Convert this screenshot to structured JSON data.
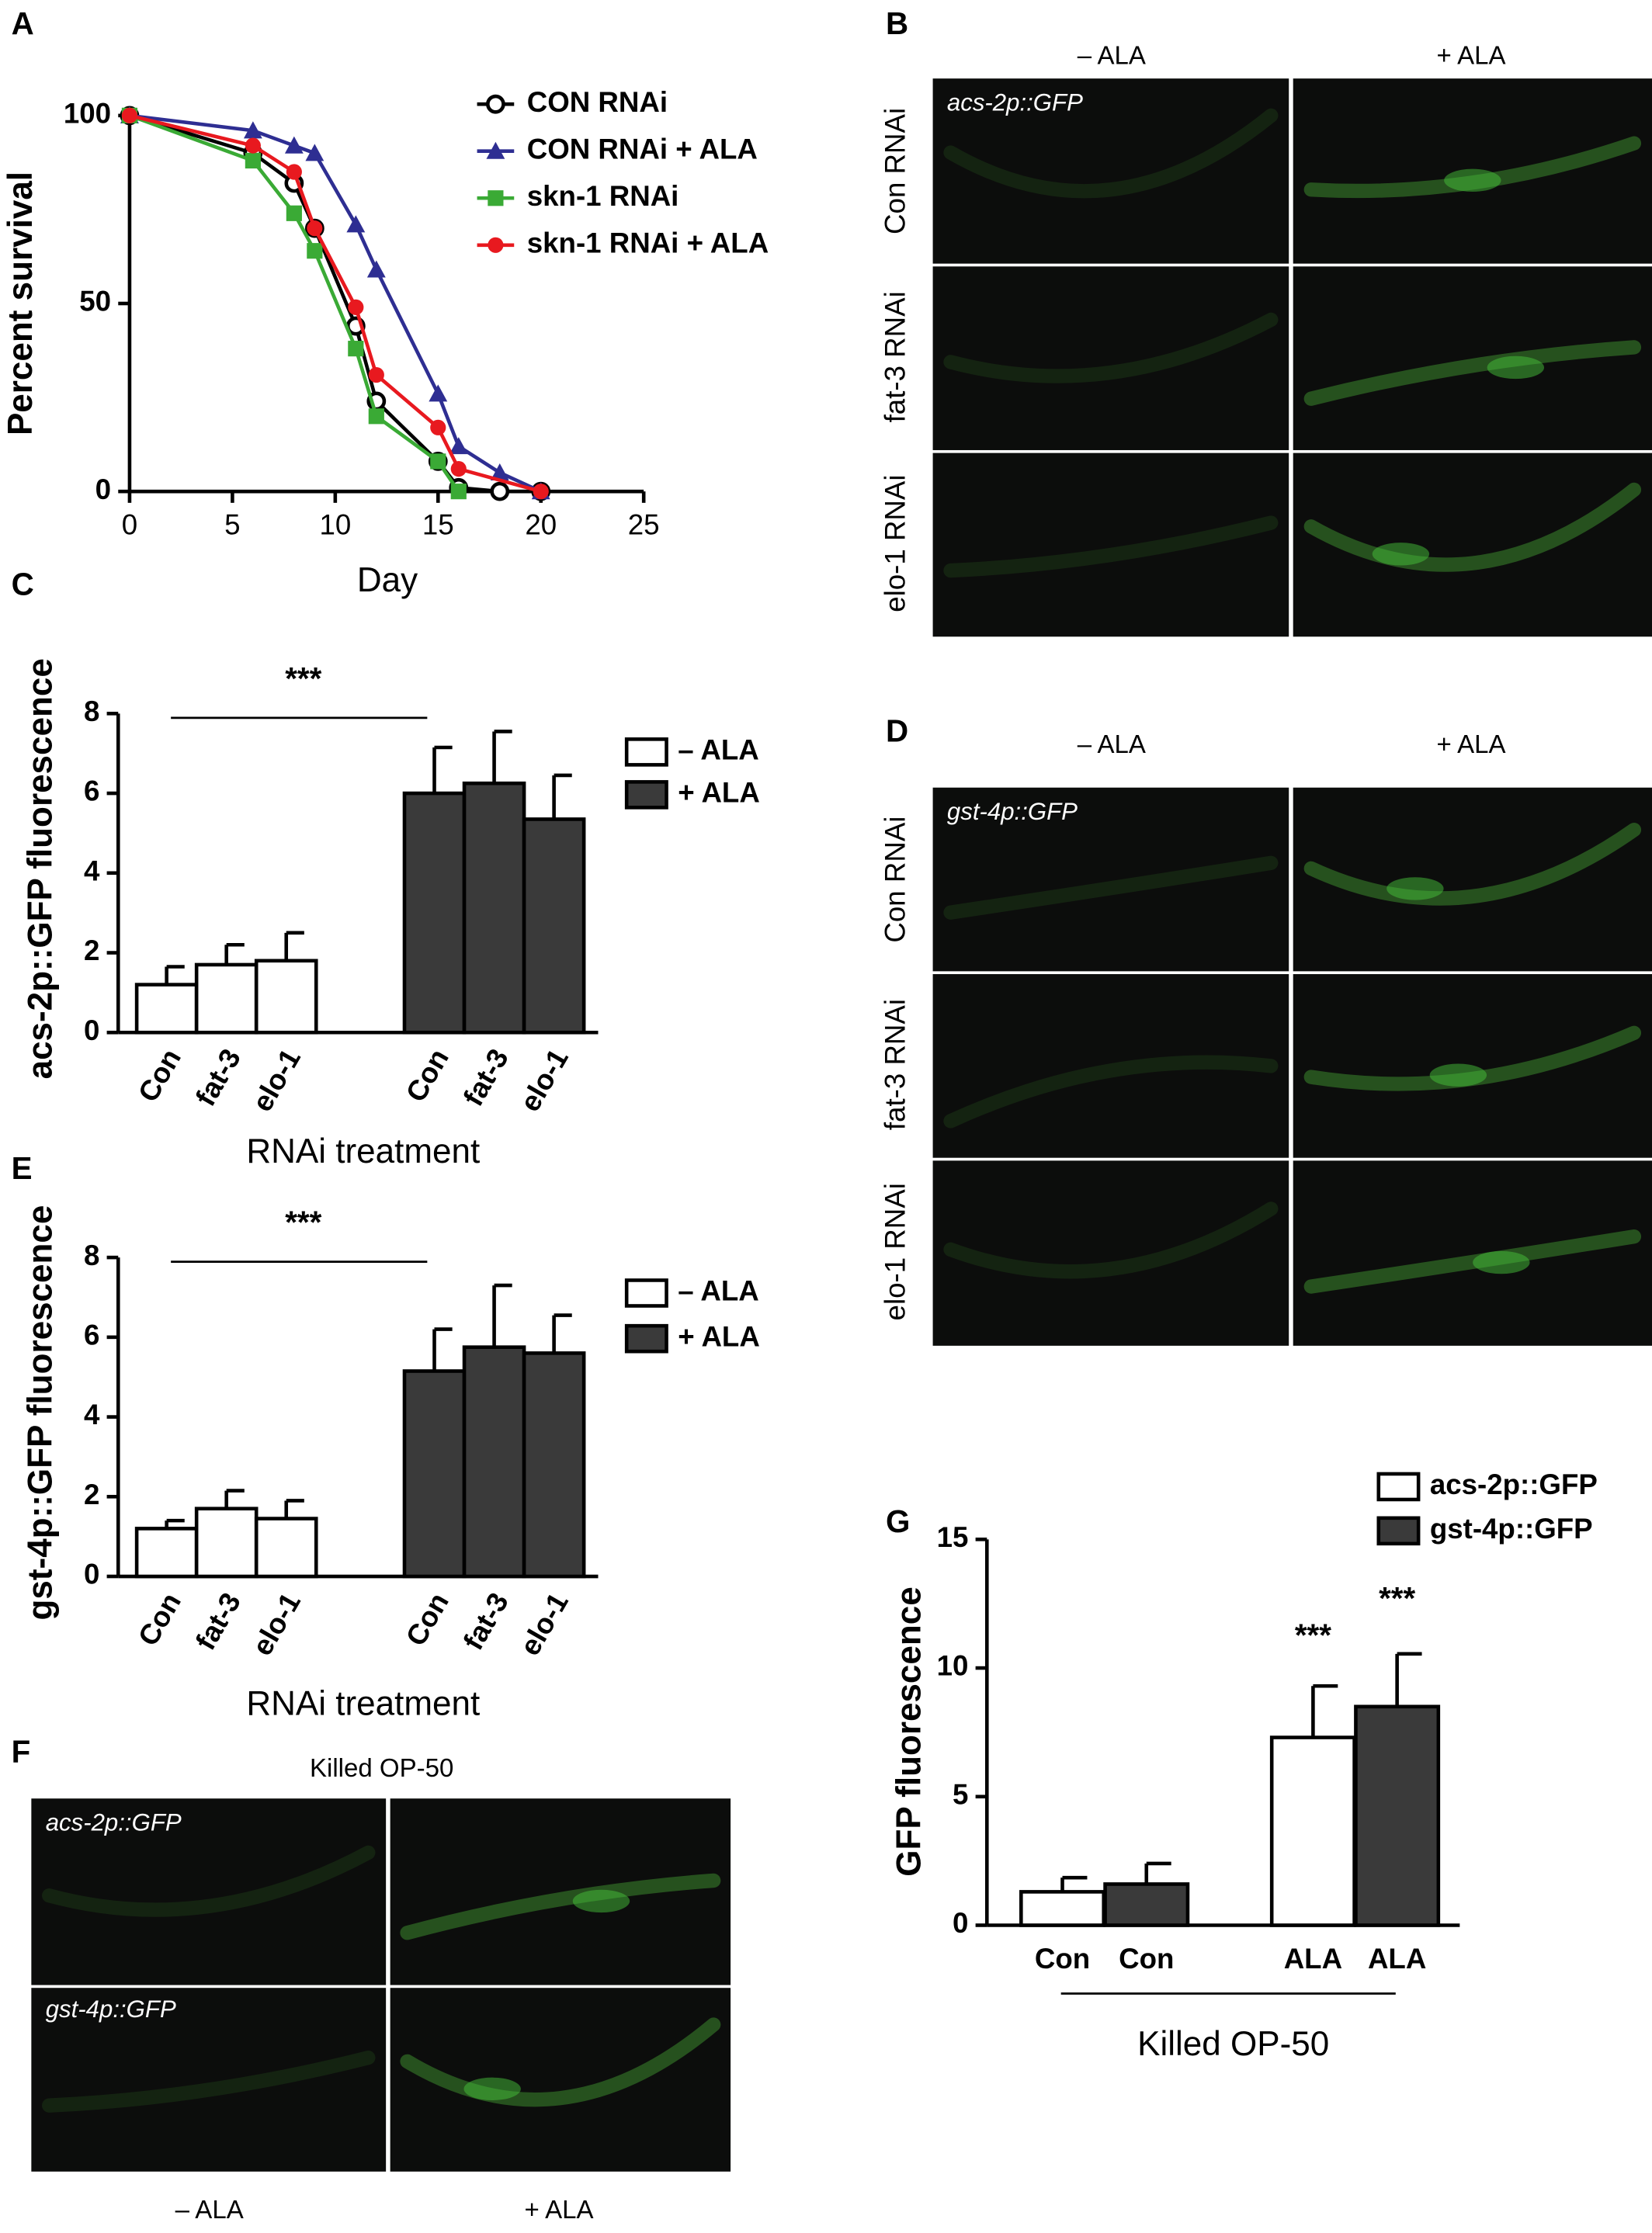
{
  "chart_data": [
    {
      "type": "line",
      "panel": "A",
      "xlabel": "Day",
      "ylabel": "Percent survival",
      "xlim": [
        0,
        25
      ],
      "xticks": [
        0,
        5,
        10,
        15,
        20,
        25
      ],
      "ylim": [
        0,
        100
      ],
      "yticks": [
        0,
        50,
        100
      ],
      "series": [
        {
          "name": "CON RNAi",
          "color": "#000000",
          "marker": "circle-open",
          "x": [
            0,
            6,
            8,
            9,
            11,
            12,
            15,
            16,
            18,
            20
          ],
          "values": [
            100,
            90,
            82,
            70,
            44,
            24,
            8,
            1,
            0,
            0
          ]
        },
        {
          "name": "CON RNAi + ALA",
          "color": "#2e2e92",
          "marker": "triangle",
          "x": [
            0,
            6,
            8,
            9,
            11,
            12,
            15,
            16,
            18,
            20
          ],
          "values": [
            100,
            96,
            92,
            90,
            71,
            59,
            26,
            12,
            5,
            0
          ]
        },
        {
          "name": "skn-1 RNAi",
          "color": "#3aaa35",
          "marker": "square",
          "x": [
            0,
            6,
            8,
            9,
            11,
            12,
            15,
            16
          ],
          "values": [
            100,
            88,
            74,
            64,
            38,
            20,
            8,
            0
          ]
        },
        {
          "name": "skn-1 RNAi + ALA",
          "color": "#e8191f",
          "marker": "circle",
          "x": [
            0,
            6,
            8,
            9,
            11,
            12,
            15,
            16,
            20
          ],
          "values": [
            100,
            92,
            85,
            70,
            49,
            31,
            17,
            6,
            0
          ]
        }
      ]
    },
    {
      "type": "bar",
      "panel": "C",
      "xlabel": "RNAi treatment",
      "ylabel": "acs-2p::GFP fluorescence",
      "categories": [
        "Con",
        "fat-3",
        "elo-1",
        "Con",
        "fat-3",
        "elo-1"
      ],
      "ylim": [
        0,
        8
      ],
      "yticks": [
        0,
        2,
        4,
        6,
        8
      ],
      "annotations": [
        "***"
      ],
      "series": [
        {
          "name": "– ALA",
          "color": "#ffffff",
          "values": [
            1.2,
            1.7,
            1.8,
            null,
            null,
            null
          ],
          "errors": [
            0.45,
            0.5,
            0.7,
            null,
            null,
            null
          ]
        },
        {
          "name": "+ ALA",
          "color": "#3a3a3a",
          "values": [
            null,
            null,
            null,
            6.0,
            6.25,
            5.35
          ],
          "errors": [
            null,
            null,
            null,
            1.15,
            1.3,
            1.1
          ]
        }
      ]
    },
    {
      "type": "bar",
      "panel": "E",
      "xlabel": "RNAi treatment",
      "ylabel": "gst-4p::GFP fluorescence",
      "categories": [
        "Con",
        "fat-3",
        "elo-1",
        "Con",
        "fat-3",
        "elo-1"
      ],
      "ylim": [
        0,
        8
      ],
      "yticks": [
        0,
        2,
        4,
        6,
        8
      ],
      "annotations": [
        "***"
      ],
      "series": [
        {
          "name": "– ALA",
          "color": "#ffffff",
          "values": [
            1.2,
            1.7,
            1.45,
            null,
            null,
            null
          ],
          "errors": [
            0.2,
            0.45,
            0.45,
            null,
            null,
            null
          ]
        },
        {
          "name": "+ ALA",
          "color": "#3a3a3a",
          "values": [
            null,
            null,
            null,
            5.15,
            5.75,
            5.6
          ],
          "errors": [
            null,
            null,
            null,
            1.05,
            1.55,
            0.95
          ]
        }
      ]
    },
    {
      "type": "bar",
      "panel": "G",
      "xlabel": "Killed OP-50",
      "ylabel": "GFP fluorescence",
      "categories": [
        "Con",
        "Con",
        "ALA",
        "ALA"
      ],
      "ylim": [
        0,
        15
      ],
      "yticks": [
        0,
        5,
        10,
        15
      ],
      "annotations": [
        "***",
        "***"
      ],
      "series": [
        {
          "name": "acs-2p::GFP",
          "color": "#ffffff",
          "values": [
            1.3,
            null,
            7.3,
            null
          ],
          "errors": [
            0.55,
            null,
            2.0,
            null
          ]
        },
        {
          "name": "gst-4p::GFP",
          "color": "#3a3a3a",
          "values": [
            null,
            1.6,
            null,
            8.5
          ],
          "errors": [
            null,
            0.8,
            null,
            2.05
          ]
        }
      ]
    }
  ],
  "micrographs": [
    {
      "panel": "B",
      "columns": [
        "– ALA",
        "+ ALA"
      ],
      "rows": [
        "Con RNAi",
        "fat-3 RNAi",
        "elo-1 RNAi"
      ],
      "tags": [
        "acs-2p::GFP"
      ]
    },
    {
      "panel": "D",
      "columns": [
        "– ALA",
        "+ ALA"
      ],
      "rows": [
        "Con RNAi",
        "fat-3 RNAi",
        "elo-1 RNAi"
      ],
      "tags": [
        "gst-4p::GFP"
      ]
    },
    {
      "panel": "F",
      "title": "Killed OP-50",
      "columns": [
        "– ALA",
        "+ ALA"
      ],
      "tags": [
        "acs-2p::GFP",
        "gst-4p::GFP"
      ]
    }
  ]
}
